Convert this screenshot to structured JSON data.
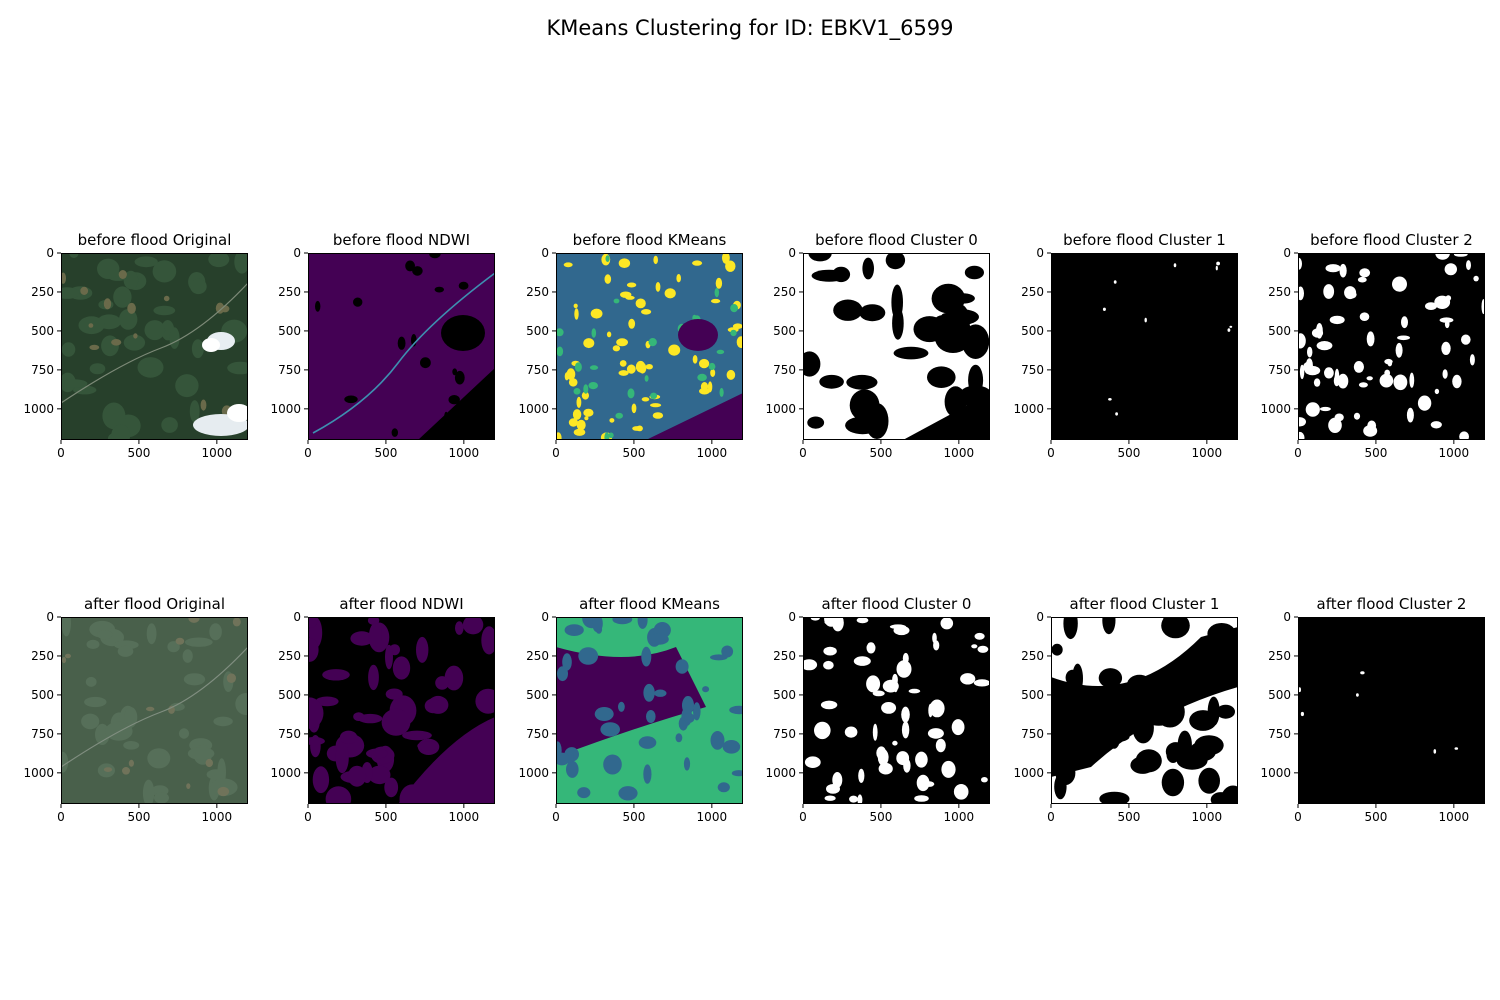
{
  "suptitle": "KMeans Clustering for ID: EBKV1_6599",
  "chart_data": {
    "type": "image-grid",
    "title": "KMeans Clustering for ID: EBKV1_6599",
    "rows": 2,
    "cols": 6,
    "xlim": [
      0,
      1200
    ],
    "ylim": [
      1200,
      0
    ],
    "xticks": [
      0,
      500,
      1000
    ],
    "yticks": [
      0,
      250,
      500,
      750,
      1000
    ],
    "colormaps": {
      "original": "rgb",
      "ndwi": "viridis",
      "kmeans": "viridis",
      "cluster": "gray"
    },
    "panels": [
      {
        "title": "before flood Original",
        "kind": "original",
        "row": 0,
        "col": 0
      },
      {
        "title": "before flood NDWI",
        "kind": "ndwi",
        "row": 0,
        "col": 1
      },
      {
        "title": "before flood KMeans",
        "kind": "kmeans",
        "row": 0,
        "col": 2
      },
      {
        "title": "before flood Cluster 0",
        "kind": "cluster",
        "row": 0,
        "col": 3
      },
      {
        "title": "before flood Cluster 1",
        "kind": "cluster",
        "row": 0,
        "col": 4
      },
      {
        "title": "before flood Cluster 2",
        "kind": "cluster",
        "row": 0,
        "col": 5
      },
      {
        "title": "after flood Original",
        "kind": "original",
        "row": 1,
        "col": 0
      },
      {
        "title": "after flood NDWI",
        "kind": "ndwi",
        "row": 1,
        "col": 1
      },
      {
        "title": "after flood KMeans",
        "kind": "kmeans",
        "row": 1,
        "col": 2
      },
      {
        "title": "after flood Cluster 0",
        "kind": "cluster",
        "row": 1,
        "col": 3
      },
      {
        "title": "after flood Cluster 1",
        "kind": "cluster",
        "row": 1,
        "col": 4
      },
      {
        "title": "after flood Cluster 2",
        "kind": "cluster",
        "row": 1,
        "col": 5
      }
    ]
  }
}
